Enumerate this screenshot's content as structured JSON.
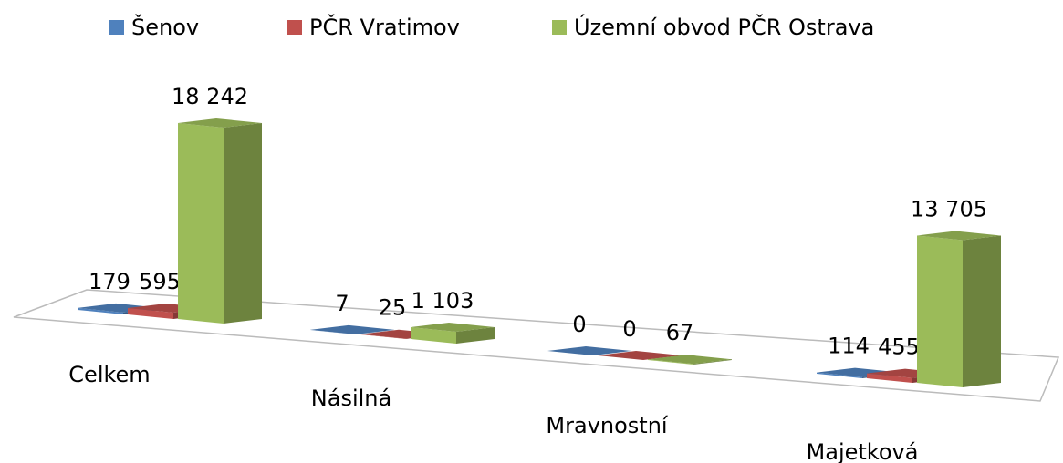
{
  "chart_data": {
    "type": "bar3d",
    "categories": [
      "Celkem",
      "Násilná",
      "Mravnostní",
      "Majetková"
    ],
    "series": [
      {
        "name": "Šenov",
        "color": "#4f81bd",
        "values": [
          179,
          7,
          0,
          114
        ]
      },
      {
        "name": "PČR Vratimov",
        "color": "#c0504d",
        "values": [
          595,
          25,
          0,
          455
        ]
      },
      {
        "name": "Územní obvod PČR Ostrava",
        "color": "#9bbb59",
        "values": [
          18242,
          1103,
          67,
          13705
        ],
        "value_labels": [
          "18 242",
          "1 103",
          "67",
          "13 705"
        ]
      }
    ],
    "legend": "top"
  }
}
